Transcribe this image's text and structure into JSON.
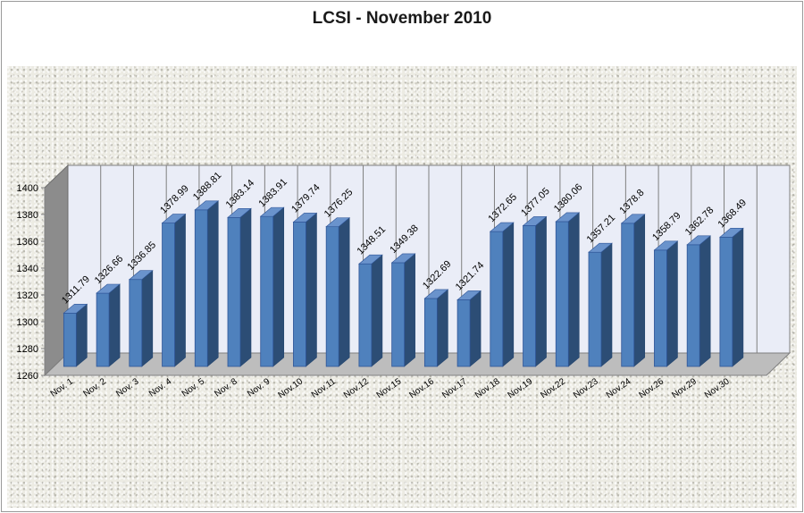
{
  "chart_data": {
    "type": "bar",
    "title": "LCSI - November 2010",
    "xlabel": "",
    "ylabel": "",
    "ylim": [
      1260,
      1400
    ],
    "yticks": [
      1260,
      1280,
      1300,
      1320,
      1340,
      1360,
      1380,
      1400
    ],
    "grid": "vertical",
    "legend": "none",
    "bar_color": "#4f81bd",
    "categories": [
      "Nov. 1",
      "Nov. 2",
      "Nov. 3",
      "Nov. 4",
      "Nov. 5",
      "Nov. 8",
      "Nov. 9",
      "Nov.10",
      "Nov.11",
      "Nov.12",
      "Nov.15",
      "Nov.16",
      "Nov.17",
      "Nov.18",
      "Nov.19",
      "Nov.22",
      "Nov.23",
      "Nov.24",
      "Nov.26",
      "Nov.29",
      "Nov.30"
    ],
    "values": [
      1311.79,
      1326.66,
      1336.85,
      1378.99,
      1388.81,
      1383.14,
      1383.91,
      1379.74,
      1376.25,
      1348.51,
      1349.38,
      1322.69,
      1321.74,
      1372.65,
      1377.05,
      1380.06,
      1357.21,
      1378.8,
      1358.79,
      1362.78,
      1368.49
    ],
    "data_labels": [
      "1311.79",
      "1326.66",
      "1336.85",
      "1378.99",
      "1388.81",
      "1383.14",
      "1383.91",
      "1379.74",
      "1376.25",
      "1348.51",
      "1349.38",
      "1322.69",
      "1321.74",
      "1372.65",
      "1377.05",
      "1380.06",
      "1357.21",
      "1378.8",
      "1358.79",
      "1362.78",
      "1368.49"
    ]
  }
}
